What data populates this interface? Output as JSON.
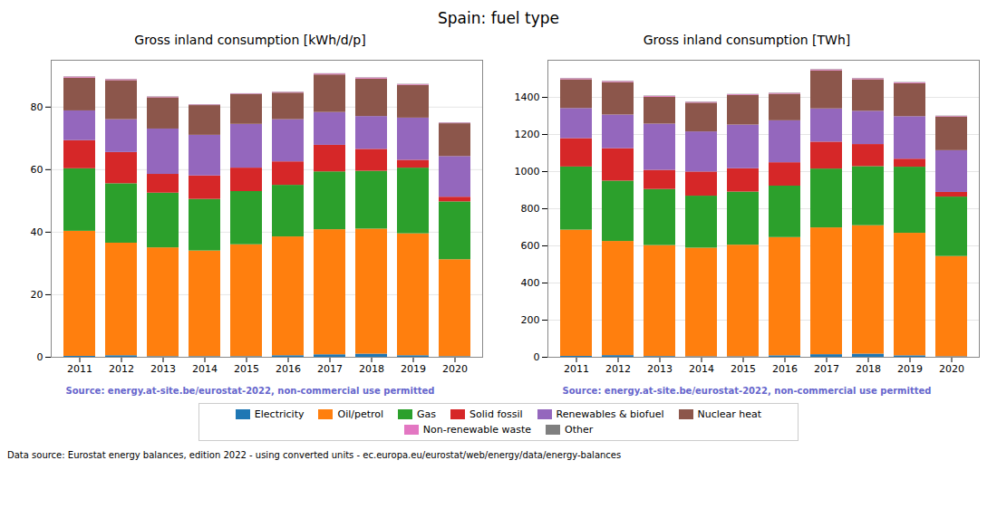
{
  "title": "Spain: fuel type",
  "annotations": [
    "Data source: Eurostat energy balances, edition 2022 - using converted units - ec.europa.eu/eurostat/web/energy/data/energy-balances"
  ],
  "chart_data": [
    {
      "type": "bar",
      "stacked": true,
      "grid": true,
      "legend": "bottom",
      "subtitle": "Gross inland consumption [kWh/d/p]",
      "annotations": [
        {
          "text": "Source: energy.at-site.be/eurostat-2022, non-commercial use permitted",
          "color": "#6666cc"
        }
      ],
      "categories": [
        "2011",
        "2012",
        "2013",
        "2014",
        "2015",
        "2016",
        "2017",
        "2018",
        "2019",
        "2020"
      ],
      "ylim": [
        0,
        95
      ],
      "yticks": [
        0,
        20,
        40,
        60,
        80
      ],
      "series": [
        {
          "name": "Electricity",
          "color": "#1f77b4",
          "values": [
            0.3,
            0.5,
            0.2,
            0.2,
            0.2,
            0.5,
            0.8,
            1.0,
            0.5,
            0.2
          ]
        },
        {
          "name": "Oil/petrol",
          "color": "#ff7f0e",
          "values": [
            40.0,
            36.0,
            34.8,
            33.8,
            35.8,
            38.0,
            40.0,
            40.0,
            39.0,
            31.0
          ]
        },
        {
          "name": "Gas",
          "color": "#2ca02c",
          "values": [
            20.0,
            19.0,
            17.5,
            16.5,
            17.0,
            16.5,
            18.5,
            18.5,
            21.0,
            18.5
          ]
        },
        {
          "name": "Solid fossil",
          "color": "#d62728",
          "values": [
            9.0,
            10.0,
            6.0,
            7.5,
            7.5,
            7.5,
            8.5,
            7.0,
            2.5,
            1.5
          ]
        },
        {
          "name": "Renewables & biofuel",
          "color": "#9467bd",
          "values": [
            9.5,
            10.5,
            14.5,
            13.0,
            14.0,
            13.5,
            10.5,
            10.5,
            13.5,
            13.0
          ]
        },
        {
          "name": "Nuclear heat",
          "color": "#8c564b",
          "values": [
            10.5,
            12.5,
            10.0,
            9.5,
            9.5,
            8.5,
            12.0,
            12.0,
            10.5,
            10.5
          ]
        },
        {
          "name": "Non-renewable waste",
          "color": "#e377c2",
          "values": [
            0.3,
            0.3,
            0.2,
            0.2,
            0.2,
            0.2,
            0.3,
            0.3,
            0.2,
            0.2
          ]
        },
        {
          "name": "Other",
          "color": "#7f7f7f",
          "values": [
            0.1,
            0.1,
            0.1,
            0.1,
            0.1,
            0.1,
            0.1,
            0.1,
            0.1,
            0.1
          ]
        }
      ]
    },
    {
      "type": "bar",
      "stacked": true,
      "grid": true,
      "legend": "bottom",
      "subtitle": "Gross inland consumption [TWh]",
      "annotations": [
        {
          "text": "Source: energy.at-site.be/eurostat-2022, non-commercial use permitted",
          "color": "#6666cc"
        }
      ],
      "categories": [
        "2011",
        "2012",
        "2013",
        "2014",
        "2015",
        "2016",
        "2017",
        "2018",
        "2019",
        "2020"
      ],
      "ylim": [
        0,
        1600
      ],
      "yticks": [
        0,
        200,
        400,
        600,
        800,
        1000,
        1200,
        1400
      ],
      "series": [
        {
          "name": "Electricity",
          "color": "#1f77b4",
          "values": [
            5,
            9,
            4,
            3,
            3,
            8,
            14,
            17,
            8,
            3
          ]
        },
        {
          "name": "Oil/petrol",
          "color": "#ff7f0e",
          "values": [
            680,
            615,
            598,
            585,
            601,
            637,
            683,
            692,
            660,
            540
          ]
        },
        {
          "name": "Gas",
          "color": "#2ca02c",
          "values": [
            340,
            325,
            302,
            280,
            286,
            277,
            317,
            318,
            356,
            320
          ]
        },
        {
          "name": "Solid fossil",
          "color": "#d62728",
          "values": [
            153,
            175,
            103,
            130,
            126,
            126,
            145,
            119,
            43,
            25
          ]
        },
        {
          "name": "Renewables & biofuel",
          "color": "#9467bd",
          "values": [
            162,
            181,
            249,
            216,
            235,
            226,
            179,
            179,
            229,
            225
          ]
        },
        {
          "name": "Nuclear heat",
          "color": "#8c564b",
          "values": [
            155,
            175,
            145,
            155,
            159,
            143,
            205,
            170,
            178,
            181
          ]
        },
        {
          "name": "Non-renewable waste",
          "color": "#e377c2",
          "values": [
            5,
            5,
            4,
            4,
            4,
            4,
            5,
            5,
            4,
            3
          ]
        },
        {
          "name": "Other",
          "color": "#7f7f7f",
          "values": [
            2,
            2,
            2,
            2,
            2,
            2,
            2,
            2,
            2,
            2
          ]
        }
      ]
    }
  ]
}
